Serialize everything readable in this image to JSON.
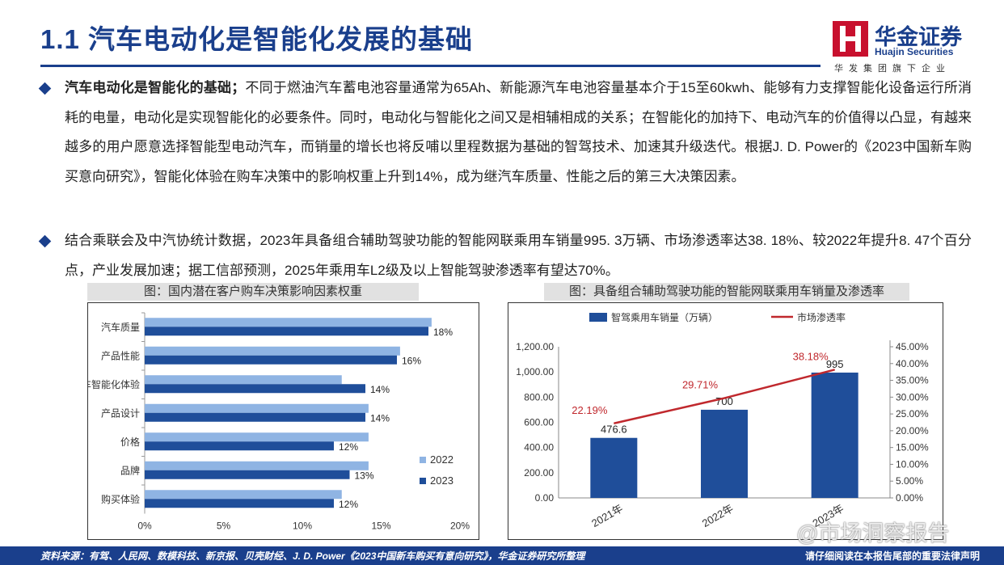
{
  "header": {
    "title": "1.1 汽车电动化是智能化发展的基础",
    "logo_cn": "华金证券",
    "logo_en": "Huajin Securities",
    "logo_tagline": "华发集团旗下企业"
  },
  "paragraphs": {
    "p1_bold": "汽车电动化是智能化的基础；",
    "p1_text": "不同于燃油汽车蓄电池容量通常为65Ah、新能源汽车电池容量基本介于15至60kwh、能够有力支撑智能化设备运行所消耗的电量，电动化是实现智能化的必要条件。同时，电动化与智能化之间又是相辅相成的关系；在智能化的加持下、电动汽车的价值得以凸显，有越来越多的用户愿意选择智能型电动汽车，而销量的增长也将反哺以里程数据为基础的智驾技术、加速其升级迭代。根据J. D. Power的《2023中国新车购买意向研究》，智能化体验在购车决策中的影响权重上升到14%，成为继汽车质量、性能之后的第三大决策因素。",
    "p2_text": "结合乘联会及中汽协统计数据，2023年具备组合辅助驾驶功能的智能网联乘用车销量995. 3万辆、市场渗透率达38. 18%、较2022年提升8. 47个百分点，产业发展加速；据工信部预测，2025年乘用车L2级及以上智能驾驶渗透率有望达70%。"
  },
  "captions": {
    "chart1": "图：国内潜在客户购车决策影响因素权重",
    "chart2": "图：具备组合辅助驾驶功能的智能网联乘用车销量及渗透率"
  },
  "chart_data": [
    {
      "type": "bar",
      "orientation": "horizontal",
      "categories": [
        "汽车质量",
        "产品性能",
        "汽车智能化体验",
        "产品设计",
        "价格",
        "品牌",
        "购买体验"
      ],
      "series": [
        {
          "name": "2022",
          "values": [
            18.2,
            16.2,
            12.5,
            14.2,
            14.2,
            14.2,
            12.5
          ],
          "color": "#8fb4e3"
        },
        {
          "name": "2023",
          "values": [
            18,
            16,
            14,
            14,
            12,
            13,
            12
          ],
          "color": "#1f4e9a"
        }
      ],
      "data_labels": [
        "18%",
        "16%",
        "14%",
        "14%",
        "12%",
        "13%",
        "12%"
      ],
      "xlim": [
        0,
        20
      ],
      "xticks": [
        "0%",
        "5%",
        "10%",
        "15%",
        "20%"
      ],
      "legend": "right"
    },
    {
      "type": "bar+line",
      "categories": [
        "2021年",
        "2022年",
        "2023年"
      ],
      "bar_series": {
        "name": "智驾乘用车销量（万辆）",
        "values": [
          476.6,
          700,
          995
        ],
        "labels": [
          "476.6",
          "700",
          "995"
        ],
        "color": "#1f4e9a"
      },
      "line_series": {
        "name": "市场渗透率",
        "values": [
          22.19,
          29.71,
          38.18
        ],
        "labels": [
          "22.19%",
          "29.71%",
          "38.18%"
        ],
        "color": "#c0282d"
      },
      "ylim_left": [
        0,
        1200
      ],
      "yticks_left": [
        "0.00",
        "200.00",
        "400.00",
        "600.00",
        "800.00",
        "1,000.00",
        "1,200.00"
      ],
      "ylim_right": [
        0,
        45
      ],
      "yticks_right": [
        "0.00%",
        "5.00%",
        "10.00%",
        "15.00%",
        "20.00%",
        "25.00%",
        "30.00%",
        "35.00%",
        "40.00%",
        "45.00%"
      ],
      "legend": "top"
    }
  ],
  "footer": {
    "source": "资料来源：有驾、人民网、数模科技、新京报、贝壳财经、J. D. Power《2023中国新车购买有意向研究》，华金证券研究所整理",
    "disclaimer": "请仔细阅读在本报告尾部的重要法律声明"
  },
  "watermark": "@市场洞察报告"
}
